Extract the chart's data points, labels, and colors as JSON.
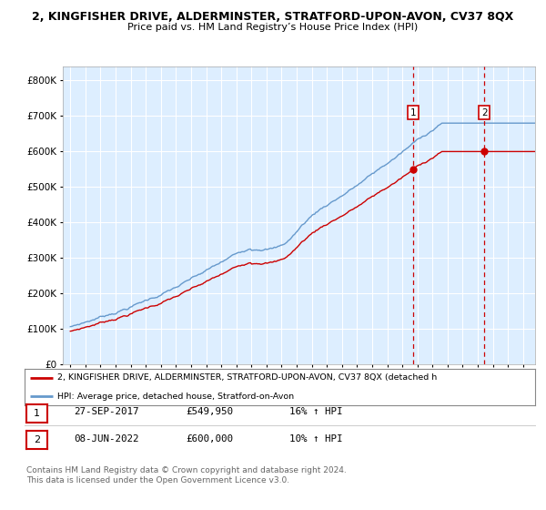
{
  "title": "2, KINGFISHER DRIVE, ALDERMINSTER, STRATFORD-UPON-AVON, CV37 8QX",
  "subtitle": "Price paid vs. HM Land Registry’s House Price Index (HPI)",
  "legend_line1": "2, KINGFISHER DRIVE, ALDERMINSTER, STRATFORD-UPON-AVON, CV37 8QX (detached h",
  "legend_line2": "HPI: Average price, detached house, Stratford-on-Avon",
  "sale1_label": "1",
  "sale1_date": "27-SEP-2017",
  "sale1_price": "£549,950",
  "sale1_hpi": "16% ↑ HPI",
  "sale2_label": "2",
  "sale2_date": "08-JUN-2022",
  "sale2_price": "£600,000",
  "sale2_hpi": "10% ↑ HPI",
  "footer": "Contains HM Land Registry data © Crown copyright and database right 2024.\nThis data is licensed under the Open Government Licence v3.0.",
  "red_color": "#cc0000",
  "blue_color": "#6699cc",
  "background_plot": "#ddeeff",
  "grid_color": "#ffffff",
  "ylim": [
    0,
    840000
  ],
  "yticks": [
    0,
    100000,
    200000,
    300000,
    400000,
    500000,
    600000,
    700000,
    800000
  ],
  "sale1_x_year": 2017.74,
  "sale2_x_year": 2022.44,
  "xmin": 1994.5,
  "xmax": 2025.8
}
